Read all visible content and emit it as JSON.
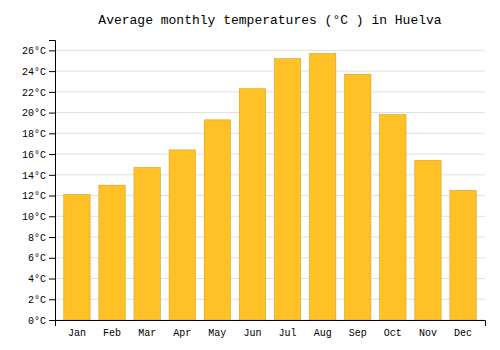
{
  "chart_data": {
    "type": "bar",
    "title": "Average monthly temperatures (°C ) in Huelva",
    "categories": [
      "Jan",
      "Feb",
      "Mar",
      "Apr",
      "May",
      "Jun",
      "Jul",
      "Aug",
      "Sep",
      "Oct",
      "Nov",
      "Dec"
    ],
    "values": [
      12.1,
      13.0,
      14.7,
      16.4,
      19.3,
      22.3,
      25.2,
      25.7,
      23.7,
      19.8,
      15.4,
      12.5
    ],
    "color": "#FFC125",
    "ylim": [
      0,
      27
    ],
    "yticks": [
      {
        "value": 0,
        "label": "0°C"
      },
      {
        "value": 2,
        "label": "2°C"
      },
      {
        "value": 4,
        "label": "4°C"
      },
      {
        "value": 6,
        "label": "6°C"
      },
      {
        "value": 8,
        "label": "8°C"
      },
      {
        "value": 10,
        "label": "10°C"
      },
      {
        "value": 12,
        "label": "12°C"
      },
      {
        "value": 14,
        "label": "14°C"
      },
      {
        "value": 16,
        "label": "16°C"
      },
      {
        "value": 18,
        "label": "18°C"
      },
      {
        "value": 20,
        "label": "20°C"
      },
      {
        "value": 22,
        "label": "22°C"
      },
      {
        "value": 24,
        "label": "24°C"
      },
      {
        "value": 26,
        "label": "26°C"
      }
    ],
    "grid": true
  }
}
